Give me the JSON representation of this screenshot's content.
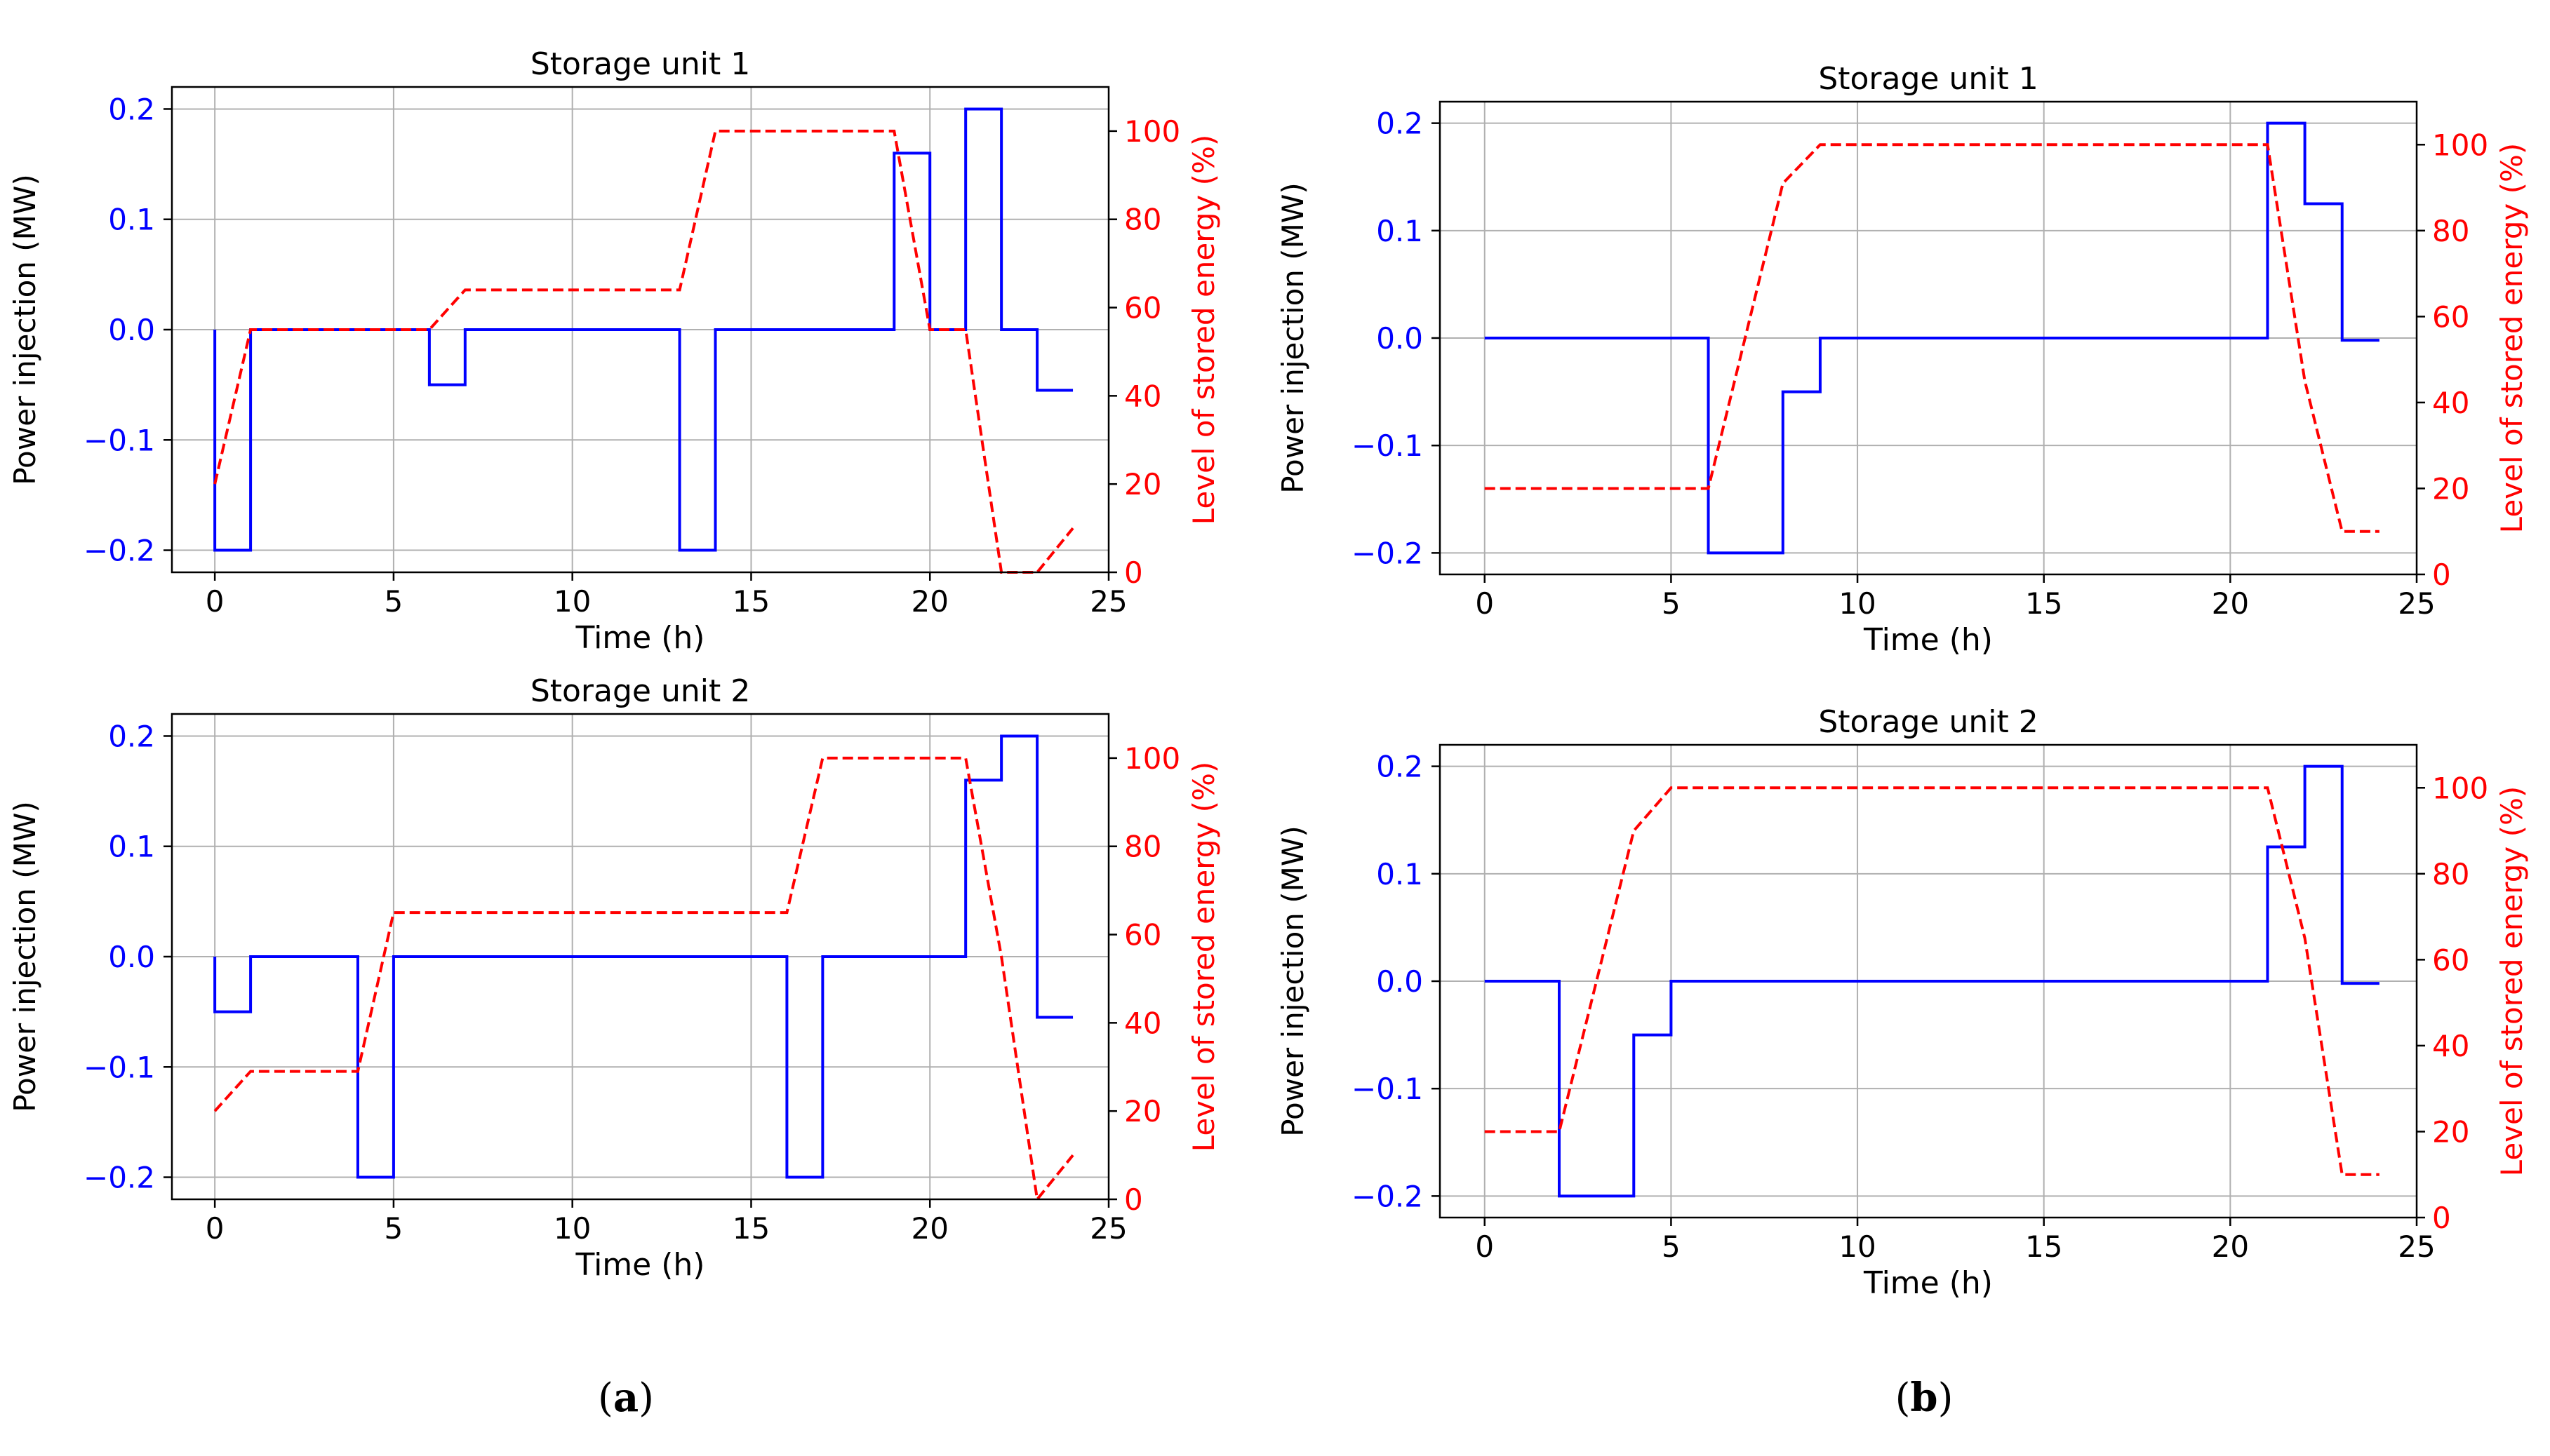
{
  "chart_data": [
    {
      "type": "line",
      "panel": "a",
      "title": "Storage unit 1",
      "xlabel": "Time (h)",
      "ylabel": "Power injection (MW)",
      "y2label": "Level of stored energy (%)",
      "xlim": [
        -1.2,
        25
      ],
      "ylim": [
        -0.22,
        0.22
      ],
      "y2lim": [
        0,
        110
      ],
      "xticks": [
        0,
        5,
        10,
        15,
        20,
        25
      ],
      "yticks": [
        -0.2,
        -0.1,
        0.0,
        0.1,
        0.2
      ],
      "ytick_labels": [
        "−0.2",
        "−0.1",
        "0.0",
        "0.1",
        "0.2"
      ],
      "y2ticks": [
        0,
        20,
        40,
        60,
        80,
        100
      ],
      "grid": true,
      "series": [
        {
          "name": "Power injection",
          "axis": "left",
          "style": "step-post",
          "color": "#0000ff",
          "x": [
            0,
            0,
            1,
            6,
            7,
            13,
            14,
            19,
            20,
            21,
            22,
            23,
            24
          ],
          "y": [
            0.0,
            -0.2,
            0.0,
            -0.05,
            0.0,
            -0.2,
            0.0,
            0.16,
            0.0,
            0.2,
            0.0,
            -0.055,
            -0.055
          ]
        },
        {
          "name": "Level of stored energy",
          "axis": "right",
          "style": "dashed",
          "color": "#ff0000",
          "x": [
            0,
            1,
            6,
            7,
            13,
            14,
            19,
            20,
            21,
            22,
            23,
            24
          ],
          "y": [
            20,
            55,
            55,
            64,
            64,
            100,
            100,
            55,
            55,
            0,
            0,
            10
          ]
        }
      ]
    },
    {
      "type": "line",
      "panel": "a",
      "title": "Storage unit 2",
      "xlabel": "Time (h)",
      "ylabel": "Power injection (MW)",
      "y2label": "Level of stored energy (%)",
      "xlim": [
        -1.2,
        25
      ],
      "ylim": [
        -0.22,
        0.22
      ],
      "y2lim": [
        0,
        110
      ],
      "xticks": [
        0,
        5,
        10,
        15,
        20,
        25
      ],
      "yticks": [
        -0.2,
        -0.1,
        0.0,
        0.1,
        0.2
      ],
      "ytick_labels": [
        "−0.2",
        "−0.1",
        "0.0",
        "0.1",
        "0.2"
      ],
      "y2ticks": [
        0,
        20,
        40,
        60,
        80,
        100
      ],
      "grid": true,
      "series": [
        {
          "name": "Power injection",
          "axis": "left",
          "style": "step-post",
          "color": "#0000ff",
          "x": [
            0,
            0,
            1,
            4,
            5,
            16,
            17,
            21,
            22,
            23,
            24
          ],
          "y": [
            0.0,
            -0.05,
            0.0,
            -0.2,
            0.0,
            -0.2,
            0.0,
            0.16,
            0.2,
            -0.055,
            -0.055
          ]
        },
        {
          "name": "Level of stored energy",
          "axis": "right",
          "style": "dashed",
          "color": "#ff0000",
          "x": [
            0,
            1,
            4,
            5,
            16,
            17,
            21,
            22,
            23,
            24
          ],
          "y": [
            20,
            29,
            29,
            65,
            65,
            100,
            100,
            55,
            0,
            10
          ]
        }
      ]
    },
    {
      "type": "line",
      "panel": "b",
      "title": "Storage unit 1",
      "xlabel": "Time (h)",
      "ylabel": "Power injection (MW)",
      "y2label": "Level of stored energy (%)",
      "xlim": [
        -1.2,
        25
      ],
      "ylim": [
        -0.22,
        0.22
      ],
      "y2lim": [
        0,
        110
      ],
      "xticks": [
        0,
        5,
        10,
        15,
        20,
        25
      ],
      "yticks": [
        -0.2,
        -0.1,
        0.0,
        0.1,
        0.2
      ],
      "ytick_labels": [
        "−0.2",
        "−0.1",
        "0.0",
        "0.1",
        "0.2"
      ],
      "y2ticks": [
        0,
        20,
        40,
        60,
        80,
        100
      ],
      "grid": true,
      "series": [
        {
          "name": "Power injection",
          "axis": "left",
          "style": "step-post",
          "color": "#0000ff",
          "x": [
            0,
            6,
            8,
            9,
            21,
            22,
            23,
            24
          ],
          "y": [
            0.0,
            -0.2,
            -0.05,
            0.0,
            0.2,
            0.125,
            -0.002,
            -0.002
          ]
        },
        {
          "name": "Level of stored energy",
          "axis": "right",
          "style": "dashed",
          "color": "#ff0000",
          "x": [
            0,
            6,
            8,
            9,
            21,
            22,
            23,
            24
          ],
          "y": [
            20,
            20,
            91,
            100,
            100,
            45,
            10,
            10
          ]
        }
      ]
    },
    {
      "type": "line",
      "panel": "b",
      "title": "Storage unit 2",
      "xlabel": "Time (h)",
      "ylabel": "Power injection (MW)",
      "y2label": "Level of stored energy (%)",
      "xlim": [
        -1.2,
        25
      ],
      "ylim": [
        -0.22,
        0.22
      ],
      "y2lim": [
        0,
        110
      ],
      "xticks": [
        0,
        5,
        10,
        15,
        20,
        25
      ],
      "yticks": [
        -0.2,
        -0.1,
        0.0,
        0.1,
        0.2
      ],
      "ytick_labels": [
        "−0.2",
        "−0.1",
        "0.0",
        "0.1",
        "0.2"
      ],
      "y2ticks": [
        0,
        20,
        40,
        60,
        80,
        100
      ],
      "grid": true,
      "series": [
        {
          "name": "Power injection",
          "axis": "left",
          "style": "step-post",
          "color": "#0000ff",
          "x": [
            0,
            2,
            4,
            5,
            21,
            22,
            23,
            24
          ],
          "y": [
            0.0,
            -0.2,
            -0.05,
            0.0,
            0.125,
            0.2,
            -0.002,
            -0.002
          ]
        },
        {
          "name": "Level of stored energy",
          "axis": "right",
          "style": "dashed",
          "color": "#ff0000",
          "x": [
            0,
            2,
            4,
            5,
            21,
            22,
            23,
            24
          ],
          "y": [
            20,
            20,
            90,
            100,
            100,
            65,
            10,
            10
          ]
        }
      ]
    }
  ],
  "captions": {
    "a": {
      "open": "(",
      "letter": "a",
      "close": ")"
    },
    "b": {
      "open": "(",
      "letter": "b",
      "close": ")"
    }
  }
}
